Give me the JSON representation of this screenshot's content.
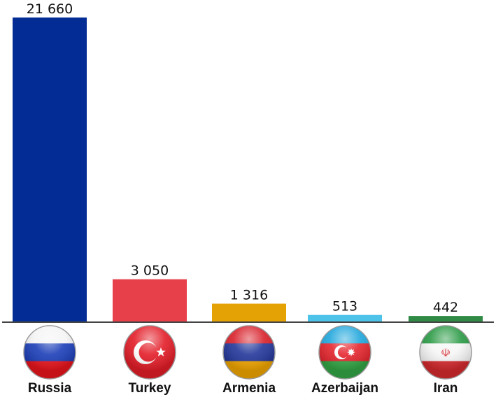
{
  "chart_data": {
    "type": "bar",
    "categories": [
      "Russia",
      "Turkey",
      "Armenia",
      "Azerbaijan",
      "Iran"
    ],
    "values": [
      21660,
      3050,
      1316,
      513,
      442
    ],
    "value_labels": [
      "21 660",
      "3 050",
      "1 316",
      "513",
      "442"
    ],
    "colors": [
      "#032c94",
      "#e8404b",
      "#e5a204",
      "#4ec3ea",
      "#2f8a45"
    ],
    "category_icons": [
      "russia-flag-icon",
      "turkey-flag-icon",
      "armenia-flag-icon",
      "azerbaijan-flag-icon",
      "iran-flag-icon"
    ],
    "ylim": [
      0,
      21660
    ],
    "grid": false,
    "legend": "none",
    "axis_color": "#444444"
  }
}
